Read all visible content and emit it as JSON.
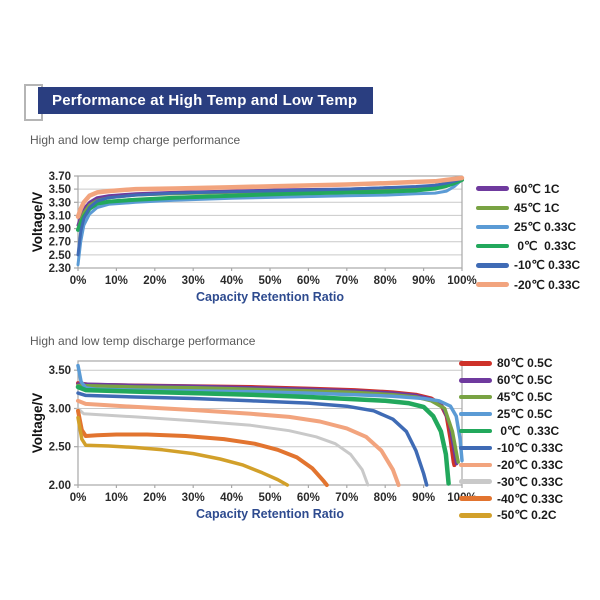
{
  "page": {
    "title": "Performance at High Temp and Low Temp",
    "banner_color": "#2A3E80",
    "axis_title_color": "#2E4B8F",
    "grid_color": "#c9c9c9",
    "axis_color": "#a8a8a8"
  },
  "chart_data": [
    {
      "type": "line",
      "title": "High and low temp charge performance",
      "xlabel": "Capacity Retention Ratio",
      "ylabel": "Voltage/V",
      "xlim": [
        0,
        100
      ],
      "ylim": [
        2.3,
        3.7
      ],
      "grid": true,
      "legend_position": "right",
      "xticks": [
        0,
        10,
        20,
        30,
        40,
        50,
        60,
        70,
        80,
        90,
        100
      ],
      "xtick_labels": [
        "0%",
        "10%",
        "20%",
        "30%",
        "40%",
        "50%",
        "60%",
        "70%",
        "80%",
        "90%",
        "100%"
      ],
      "yticks": [
        2.3,
        2.5,
        2.7,
        2.9,
        3.1,
        3.3,
        3.5,
        3.7
      ],
      "ytick_labels": [
        "2.30",
        "2.50",
        "2.70",
        "2.90",
        "3.10",
        "3.30",
        "3.50",
        "3.70"
      ],
      "series": [
        {
          "name": "60℃ 1C",
          "color": "#6F3A9E",
          "w": 3,
          "points": [
            [
              0,
              2.95
            ],
            [
              0.7,
              3.08
            ],
            [
              1.5,
              3.2
            ],
            [
              3,
              3.3
            ],
            [
              5,
              3.37
            ],
            [
              8,
              3.4
            ],
            [
              15,
              3.43
            ],
            [
              25,
              3.45
            ],
            [
              40,
              3.47
            ],
            [
              55,
              3.49
            ],
            [
              70,
              3.5
            ],
            [
              80,
              3.52
            ],
            [
              88,
              3.53
            ],
            [
              93,
              3.55
            ],
            [
              96,
              3.58
            ],
            [
              98,
              3.61
            ],
            [
              100,
              3.65
            ]
          ]
        },
        {
          "name": "45℃ 1C",
          "color": "#79A343",
          "w": 3,
          "points": [
            [
              0,
              2.9
            ],
            [
              0.7,
              3.02
            ],
            [
              1.5,
              3.14
            ],
            [
              3,
              3.26
            ],
            [
              5,
              3.33
            ],
            [
              8,
              3.37
            ],
            [
              15,
              3.41
            ],
            [
              25,
              3.43
            ],
            [
              40,
              3.45
            ],
            [
              55,
              3.47
            ],
            [
              70,
              3.48
            ],
            [
              80,
              3.5
            ],
            [
              88,
              3.52
            ],
            [
              93,
              3.54
            ],
            [
              96,
              3.57
            ],
            [
              98,
              3.6
            ],
            [
              100,
              3.64
            ]
          ]
        },
        {
          "name": "25℃ 0.33C",
          "color": "#5B9BD5",
          "w": 3,
          "points": [
            [
              0,
              2.35
            ],
            [
              0.7,
              2.7
            ],
            [
              1.5,
              2.95
            ],
            [
              3,
              3.12
            ],
            [
              5,
              3.22
            ],
            [
              8,
              3.27
            ],
            [
              15,
              3.3
            ],
            [
              25,
              3.33
            ],
            [
              40,
              3.36
            ],
            [
              55,
              3.38
            ],
            [
              70,
              3.4
            ],
            [
              80,
              3.41
            ],
            [
              88,
              3.43
            ],
            [
              93,
              3.44
            ],
            [
              96,
              3.47
            ],
            [
              98,
              3.54
            ],
            [
              99.5,
              3.62
            ],
            [
              100,
              3.65
            ]
          ]
        },
        {
          "name": " 0℃  0.33C",
          "color": "#22A85C",
          "w": 4,
          "points": [
            [
              0,
              2.88
            ],
            [
              0.7,
              2.98
            ],
            [
              1.5,
              3.08
            ],
            [
              3,
              3.2
            ],
            [
              5,
              3.28
            ],
            [
              8,
              3.31
            ],
            [
              15,
              3.34
            ],
            [
              25,
              3.37
            ],
            [
              40,
              3.4
            ],
            [
              55,
              3.43
            ],
            [
              70,
              3.45
            ],
            [
              80,
              3.46
            ],
            [
              88,
              3.48
            ],
            [
              93,
              3.51
            ],
            [
              96,
              3.55
            ],
            [
              98,
              3.59
            ],
            [
              100,
              3.64
            ]
          ]
        },
        {
          "name": "-10℃ 0.33C",
          "color": "#3F6BB5",
          "w": 3,
          "points": [
            [
              0,
              2.5
            ],
            [
              0.7,
              2.85
            ],
            [
              1.5,
              3.05
            ],
            [
              3,
              3.22
            ],
            [
              5,
              3.32
            ],
            [
              8,
              3.37
            ],
            [
              15,
              3.41
            ],
            [
              25,
              3.44
            ],
            [
              40,
              3.46
            ],
            [
              55,
              3.48
            ],
            [
              70,
              3.5
            ],
            [
              80,
              3.52
            ],
            [
              88,
              3.54
            ],
            [
              93,
              3.56
            ],
            [
              96,
              3.59
            ],
            [
              98,
              3.62
            ],
            [
              100,
              3.66
            ]
          ]
        },
        {
          "name": "-20℃ 0.33C",
          "color": "#F2A47E",
          "w": 4.5,
          "points": [
            [
              0,
              3.08
            ],
            [
              0.7,
              3.2
            ],
            [
              1.5,
              3.3
            ],
            [
              3,
              3.4
            ],
            [
              5,
              3.45
            ],
            [
              8,
              3.47
            ],
            [
              15,
              3.5
            ],
            [
              25,
              3.51
            ],
            [
              40,
              3.53
            ],
            [
              55,
              3.55
            ],
            [
              70,
              3.57
            ],
            [
              80,
              3.59
            ],
            [
              88,
              3.61
            ],
            [
              93,
              3.62
            ],
            [
              96,
              3.64
            ],
            [
              100,
              3.67
            ]
          ]
        }
      ]
    },
    {
      "type": "line",
      "title": "High and low temp discharge performance",
      "xlabel": "Capacity Retention Ratio",
      "ylabel": "Voltage/V",
      "xlim": [
        0,
        100
      ],
      "ylim": [
        2.0,
        3.62
      ],
      "grid": true,
      "legend_position": "right",
      "xticks": [
        0,
        10,
        20,
        30,
        40,
        50,
        60,
        70,
        80,
        90,
        100
      ],
      "xtick_labels": [
        "0%",
        "10%",
        "20%",
        "30%",
        "40%",
        "50%",
        "60%",
        "70%",
        "80%",
        "90%",
        "100%"
      ],
      "yticks": [
        2.0,
        2.5,
        3.0,
        3.5
      ],
      "ytick_labels": [
        "2.00",
        "2.50",
        "3.00",
        "3.50"
      ],
      "series": [
        {
          "name": "80℃ 0.5C",
          "color": "#CE3129",
          "w": 4,
          "points": [
            [
              0,
              3.33
            ],
            [
              3,
              3.31
            ],
            [
              15,
              3.3
            ],
            [
              30,
              3.29
            ],
            [
              45,
              3.28
            ],
            [
              60,
              3.26
            ],
            [
              72,
              3.24
            ],
            [
              82,
              3.21
            ],
            [
              88,
              3.18
            ],
            [
              92,
              3.13
            ],
            [
              94.5,
              3.05
            ],
            [
              96,
              2.9
            ],
            [
              97,
              2.6
            ],
            [
              97.8,
              2.3
            ],
            [
              98,
              2.26
            ]
          ]
        },
        {
          "name": "60℃ 0.5C",
          "color": "#6F3A9E",
          "w": 3.5,
          "points": [
            [
              0,
              3.32
            ],
            [
              15,
              3.3
            ],
            [
              30,
              3.29
            ],
            [
              45,
              3.27
            ],
            [
              60,
              3.25
            ],
            [
              72,
              3.23
            ],
            [
              82,
              3.2
            ],
            [
              88,
              3.17
            ],
            [
              92,
              3.12
            ],
            [
              95,
              3.02
            ],
            [
              96.8,
              2.8
            ],
            [
              98,
              2.45
            ],
            [
              98.6,
              2.28
            ]
          ]
        },
        {
          "name": "45℃ 0.5C",
          "color": "#79A343",
          "w": 3.5,
          "points": [
            [
              0,
              3.3
            ],
            [
              15,
              3.28
            ],
            [
              30,
              3.27
            ],
            [
              45,
              3.25
            ],
            [
              60,
              3.23
            ],
            [
              72,
              3.21
            ],
            [
              82,
              3.18
            ],
            [
              88,
              3.15
            ],
            [
              92,
              3.1
            ],
            [
              95.5,
              3.0
            ],
            [
              97.5,
              2.7
            ],
            [
              98.8,
              2.35
            ],
            [
              99,
              2.3
            ]
          ]
        },
        {
          "name": "25℃ 0.5C",
          "color": "#5B9BD5",
          "w": 3.5,
          "points": [
            [
              0,
              3.56
            ],
            [
              0.8,
              3.35
            ],
            [
              2,
              3.27
            ],
            [
              5,
              3.25
            ],
            [
              15,
              3.24
            ],
            [
              30,
              3.23
            ],
            [
              45,
              3.22
            ],
            [
              60,
              3.2
            ],
            [
              72,
              3.18
            ],
            [
              82,
              3.16
            ],
            [
              90,
              3.13
            ],
            [
              94,
              3.1
            ],
            [
              97,
              3.03
            ],
            [
              98.5,
              2.9
            ],
            [
              99.5,
              2.6
            ],
            [
              100,
              2.32
            ]
          ]
        },
        {
          "name": " 0℃  0.33C",
          "color": "#22A85C",
          "w": 4.5,
          "points": [
            [
              0,
              3.28
            ],
            [
              2,
              3.24
            ],
            [
              15,
              3.22
            ],
            [
              30,
              3.2
            ],
            [
              45,
              3.18
            ],
            [
              60,
              3.15
            ],
            [
              72,
              3.12
            ],
            [
              80,
              3.1
            ],
            [
              86,
              3.07
            ],
            [
              90,
              3.02
            ],
            [
              92.5,
              2.9
            ],
            [
              94.5,
              2.7
            ],
            [
              95.8,
              2.4
            ],
            [
              96.5,
              2.02
            ]
          ]
        },
        {
          "name": "-10℃ 0.33C",
          "color": "#3F6BB5",
          "w": 3.5,
          "points": [
            [
              0,
              3.2
            ],
            [
              2,
              3.17
            ],
            [
              15,
              3.15
            ],
            [
              30,
              3.13
            ],
            [
              45,
              3.1
            ],
            [
              60,
              3.07
            ],
            [
              70,
              3.03
            ],
            [
              77,
              2.97
            ],
            [
              82,
              2.86
            ],
            [
              85.5,
              2.7
            ],
            [
              88,
              2.45
            ],
            [
              90,
              2.15
            ],
            [
              90.8,
              2.0
            ]
          ]
        },
        {
          "name": "-20℃ 0.33C",
          "color": "#F2A47E",
          "w": 4,
          "points": [
            [
              0,
              3.1
            ],
            [
              2,
              3.06
            ],
            [
              15,
              3.02
            ],
            [
              30,
              2.98
            ],
            [
              45,
              2.93
            ],
            [
              55,
              2.89
            ],
            [
              63,
              2.83
            ],
            [
              70,
              2.74
            ],
            [
              75,
              2.63
            ],
            [
              79,
              2.45
            ],
            [
              82,
              2.2
            ],
            [
              83.5,
              2.0
            ]
          ]
        },
        {
          "name": "-30℃ 0.33C",
          "color": "#C9C9C9",
          "w": 3,
          "points": [
            [
              0,
              3.0
            ],
            [
              1.5,
              2.93
            ],
            [
              15,
              2.89
            ],
            [
              30,
              2.84
            ],
            [
              45,
              2.78
            ],
            [
              55,
              2.71
            ],
            [
              62,
              2.63
            ],
            [
              67,
              2.54
            ],
            [
              71,
              2.4
            ],
            [
              74,
              2.2
            ],
            [
              75.5,
              2.0
            ]
          ]
        },
        {
          "name": "-40℃ 0.33C",
          "color": "#E2742F",
          "w": 4,
          "points": [
            [
              0,
              2.97
            ],
            [
              1,
              2.72
            ],
            [
              2,
              2.64
            ],
            [
              5,
              2.65
            ],
            [
              10,
              2.66
            ],
            [
              18,
              2.66
            ],
            [
              28,
              2.64
            ],
            [
              38,
              2.6
            ],
            [
              46,
              2.54
            ],
            [
              52,
              2.46
            ],
            [
              57,
              2.36
            ],
            [
              61,
              2.22
            ],
            [
              64,
              2.05
            ],
            [
              64.8,
              2.0
            ]
          ]
        },
        {
          "name": "-50℃ 0.2C",
          "color": "#D2A02A",
          "w": 3.5,
          "points": [
            [
              0,
              2.88
            ],
            [
              1,
              2.6
            ],
            [
              2,
              2.52
            ],
            [
              8,
              2.51
            ],
            [
              15,
              2.49
            ],
            [
              22,
              2.46
            ],
            [
              30,
              2.41
            ],
            [
              37,
              2.34
            ],
            [
              43,
              2.26
            ],
            [
              48,
              2.16
            ],
            [
              52,
              2.07
            ],
            [
              54.5,
              2.0
            ]
          ]
        }
      ]
    }
  ]
}
